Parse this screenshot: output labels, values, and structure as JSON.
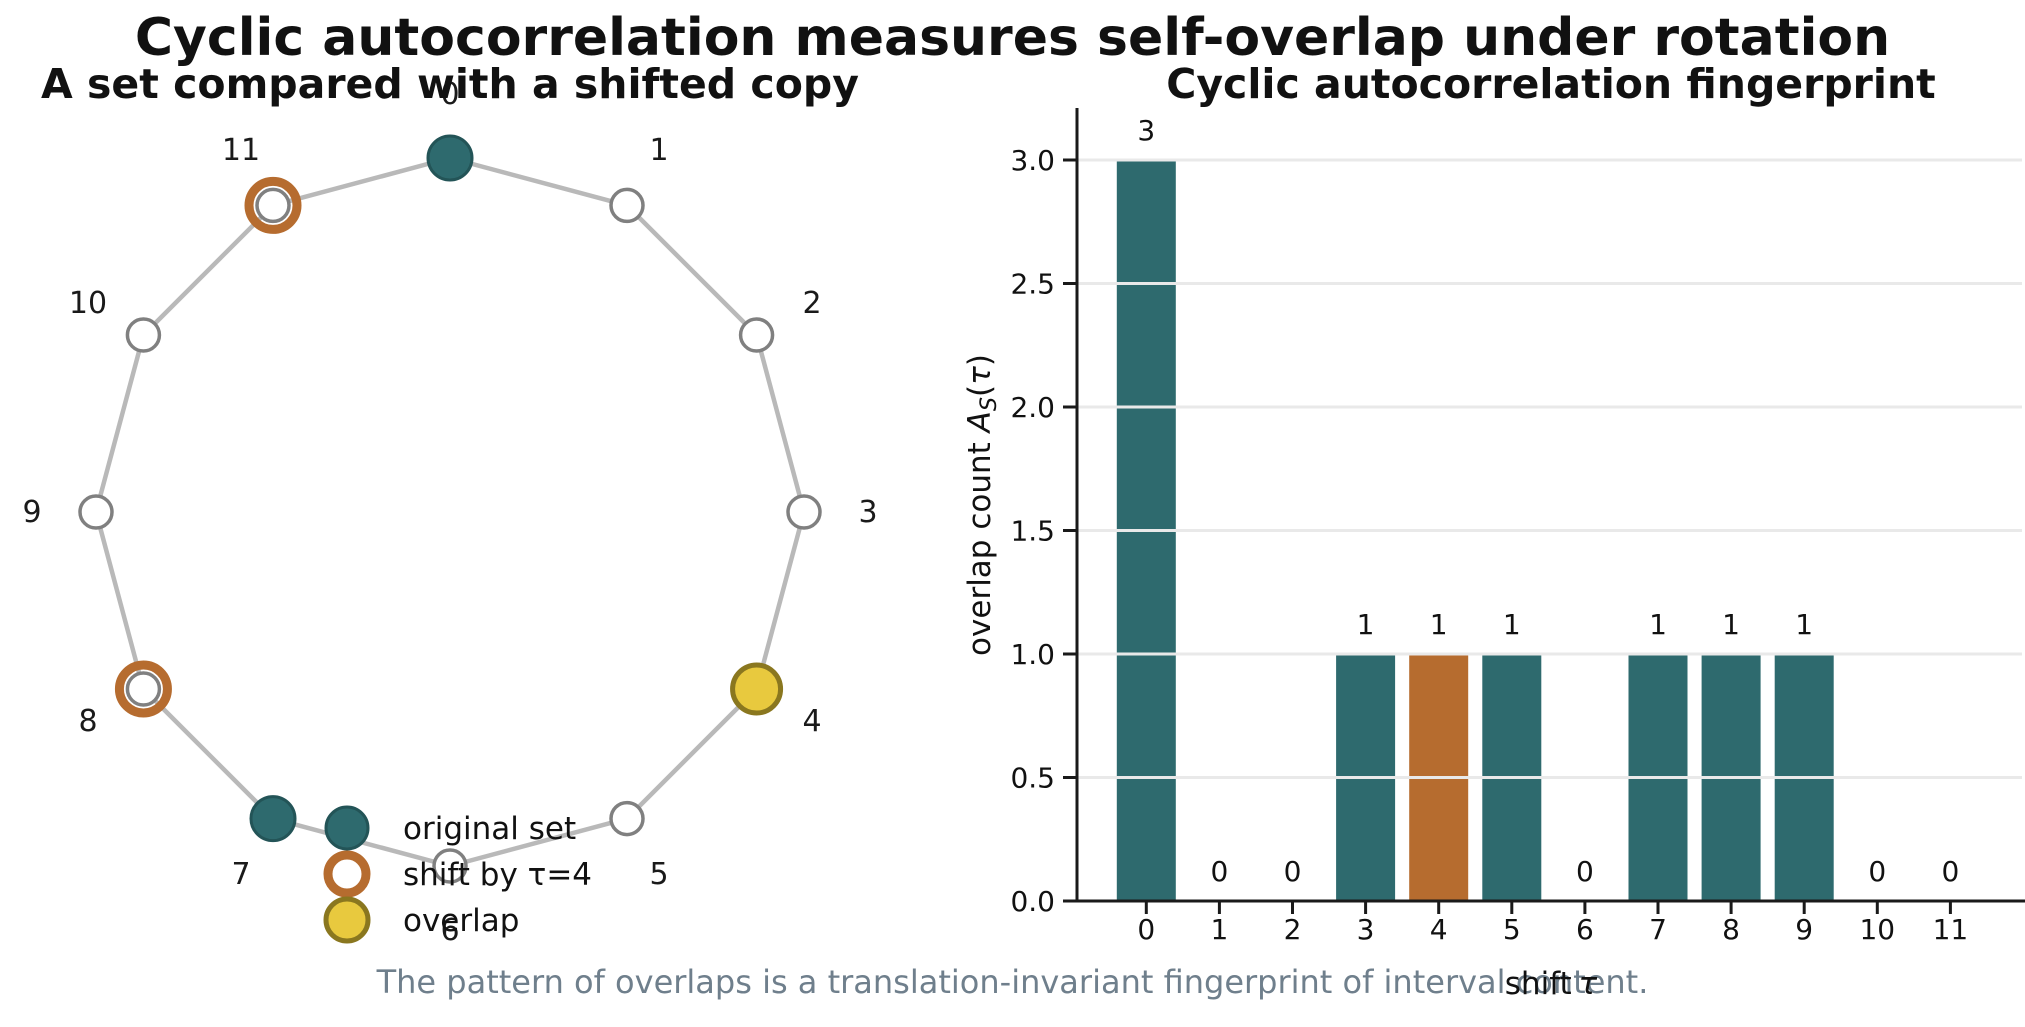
{
  "figure": {
    "title": "Cyclic autocorrelation measures self-overlap under rotation",
    "caption": "The pattern of overlaps is a translation-invariant fingerprint of interval content."
  },
  "left_panel": {
    "title": "A set compared with a shifted copy",
    "node_labels": [
      "0",
      "1",
      "2",
      "3",
      "4",
      "5",
      "6",
      "7",
      "8",
      "9",
      "10",
      "11"
    ],
    "original_set": [
      0,
      4,
      7
    ],
    "shifted_set": [
      4,
      8,
      11
    ],
    "overlap_set": [
      4
    ],
    "legend": [
      {
        "marker": "teal-dot-icon",
        "label": "original set"
      },
      {
        "marker": "orange-ring-icon",
        "label": "shift by τ=4"
      },
      {
        "marker": "yellow-dot-icon",
        "label": "overlap"
      }
    ]
  },
  "right_panel": {
    "title": "Cyclic autocorrelation fingerprint",
    "xlabel_prefix": "shift",
    "xlabel_tau": "τ",
    "ylabel_prefix": "overlap count ",
    "ylabel_A": "A",
    "ylabel_sub": "S",
    "ylabel_open": "(",
    "ylabel_tau": "τ",
    "ylabel_close": ")",
    "yticks": [
      "0.0",
      "0.5",
      "1.0",
      "1.5",
      "2.0",
      "2.5",
      "3.0"
    ],
    "xticks": [
      "0",
      "1",
      "2",
      "3",
      "4",
      "5",
      "6",
      "7",
      "8",
      "9",
      "10",
      "11"
    ]
  },
  "chart_data": {
    "type": "bar",
    "title": "Cyclic autocorrelation fingerprint",
    "categories": [
      0,
      1,
      2,
      3,
      4,
      5,
      6,
      7,
      8,
      9,
      10,
      11
    ],
    "values": [
      3,
      0,
      0,
      1,
      1,
      1,
      0,
      1,
      1,
      1,
      0,
      0
    ],
    "value_labels": [
      "3",
      "0",
      "0",
      "1",
      "1",
      "1",
      "0",
      "1",
      "1",
      "1",
      "0",
      "0"
    ],
    "highlight_index": 4,
    "xlabel": "shift τ",
    "ylabel": "overlap count A_S(τ)",
    "ylim": [
      0,
      3.0
    ],
    "ytick_step": 0.5,
    "grid": true,
    "legend_position": "lower center of left panel"
  },
  "colors": {
    "teal": "#2E6A6E",
    "teal_edge": "#235457",
    "orange": "#B66C2F",
    "yellow": "#E8C93E",
    "yellow_edge": "#8A771F",
    "node_edge": "#808080",
    "node_fill": "#ffffff",
    "polygon_edge": "#b9b9b9",
    "grid": "#e9e9e9",
    "spine": "#1a1a1a",
    "caption_gray": "#6f7f8c"
  }
}
